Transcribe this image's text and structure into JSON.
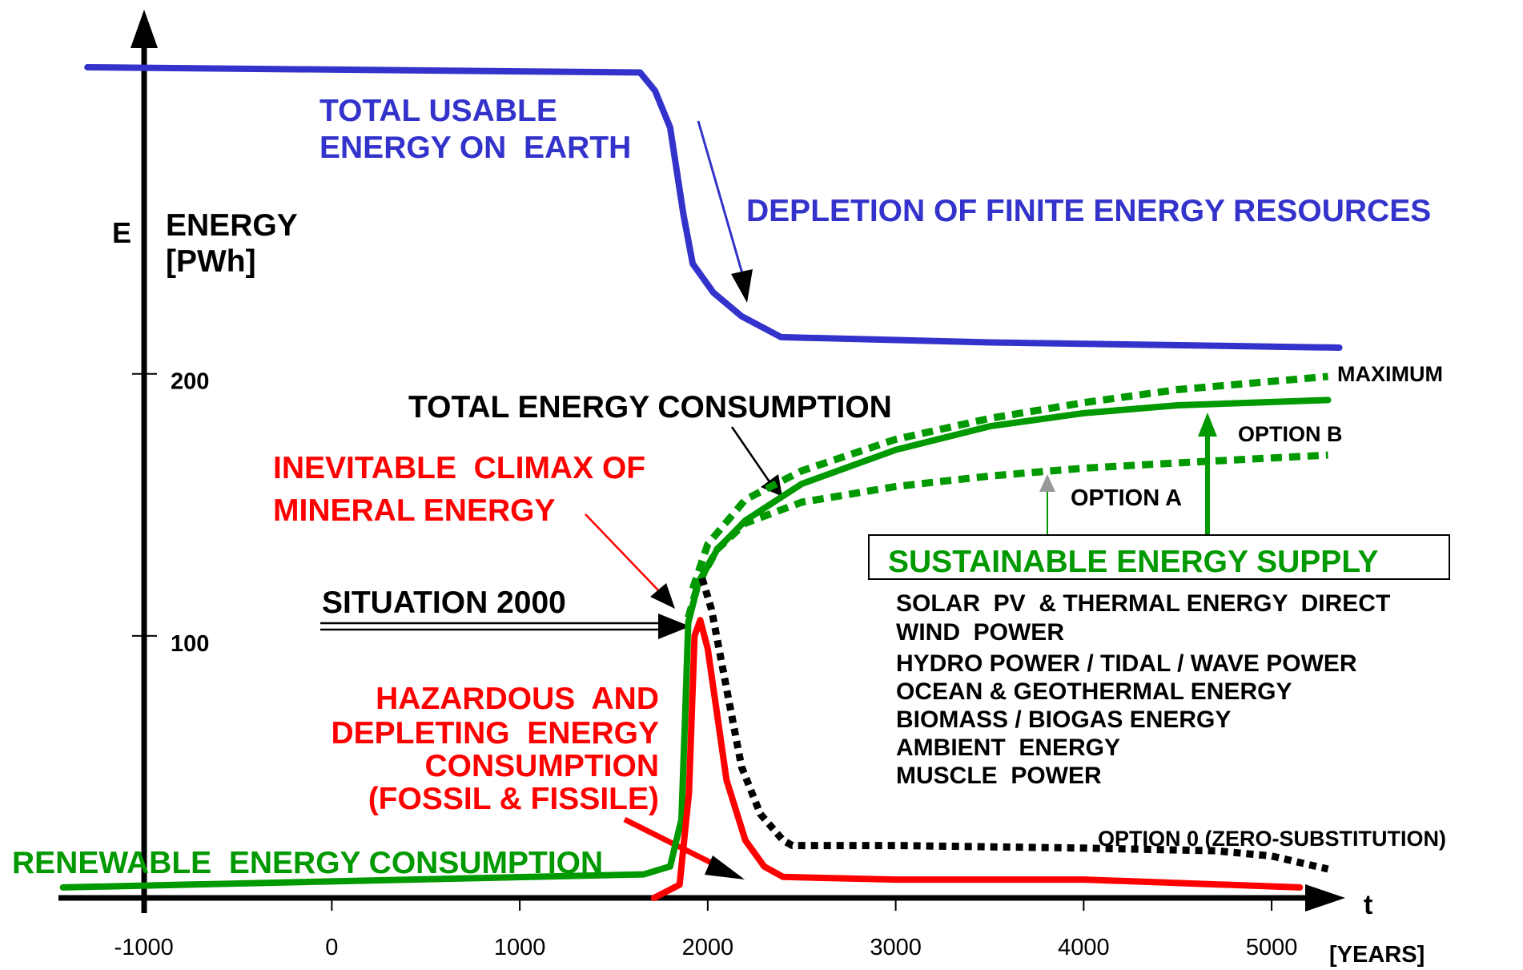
{
  "chart_data": {
    "type": "line",
    "xlim": [
      -1450,
      5400
    ],
    "ylim": [
      0,
      339
    ],
    "xticks": [
      -1000,
      0,
      1000,
      2000,
      3000,
      4000,
      5000
    ],
    "yticks": [
      100,
      200
    ],
    "x_axis_label": "t",
    "x_unit_label": "[YEARS]",
    "y_axis_symbol": "E",
    "y_axis_label": [
      "ENERGY",
      "[PWh]"
    ],
    "series": [
      {
        "color": "#3333cc",
        "style": "solid",
        "x": [
          -1300,
          1640,
          1720,
          1800,
          1870,
          1920,
          2030,
          2180,
          2390,
          3500,
          5360
        ],
        "values": [
          317,
          315,
          308,
          294,
          261,
          242,
          231,
          222,
          214,
          212,
          210
        ]
      },
      {
        "color": "#009900",
        "style": "solid",
        "x": [
          -1430,
          1660,
          1800,
          1860,
          1880,
          1896
        ],
        "values": [
          4,
          9,
          12,
          30,
          70,
          105
        ]
      },
      {
        "color": "#009900",
        "style": "solid",
        "x": [
          1896,
          1950,
          2050,
          2200,
          2500,
          3000,
          3500,
          4000,
          4500,
          5300
        ],
        "values": [
          105,
          120,
          133,
          144,
          158,
          171,
          180,
          185,
          188,
          190
        ]
      },
      {
        "color": "#009900",
        "style": "dotted",
        "x": [
          1920,
          2000,
          2200,
          2500,
          3000,
          3500,
          4000,
          4500,
          5300
        ],
        "values": [
          118,
          135,
          152,
          163,
          175,
          183,
          189,
          194,
          199
        ]
      },
      {
        "color": "#009900",
        "style": "dotted",
        "x": [
          1896,
          1950,
          2050,
          2200,
          2500,
          3000,
          3500,
          4000,
          4500,
          5300
        ],
        "values": [
          107,
          120,
          133,
          143,
          151,
          157,
          161,
          164,
          166,
          169
        ]
      },
      {
        "color": "#000000",
        "style": "dotted",
        "x": [
          1970,
          2020,
          2060,
          2100,
          2180,
          2280,
          2400,
          2450,
          3000,
          4000,
          4700,
          5000,
          5300
        ],
        "values": [
          122,
          110,
          95,
          80,
          50,
          32,
          22,
          20,
          20,
          19,
          18,
          16,
          11
        ]
      },
      {
        "color": "#ff0000",
        "style": "solid",
        "x": [
          1714,
          1850,
          1900,
          1930,
          1960,
          2000,
          2050,
          2100,
          2200,
          2300,
          2400,
          3000,
          4000,
          5150
        ],
        "values": [
          0,
          5,
          40,
          100,
          106,
          95,
          70,
          45,
          22,
          12,
          8,
          7,
          7,
          4
        ]
      }
    ],
    "annotations": [
      {
        "text": "TOTAL USABLE",
        "color": "#3333cc"
      },
      {
        "text": "ENERGY ON  EARTH",
        "color": "#3333cc"
      },
      {
        "text": "DEPLETION OF FINITE ENERGY RESOURCES",
        "color": "#3333cc"
      },
      {
        "text": "TOTAL ENERGY CONSUMPTION",
        "color": "#000000"
      },
      {
        "text": "INEVITABLE  CLIMAX OF",
        "color": "#ff0000"
      },
      {
        "text": "MINERAL ENERGY",
        "color": "#ff0000"
      },
      {
        "text": "SITUATION 2000",
        "color": "#000000"
      },
      {
        "text": "HAZARDOUS  AND",
        "color": "#ff0000"
      },
      {
        "text": "DEPLETING  ENERGY",
        "color": "#ff0000"
      },
      {
        "text": "CONSUMPTION",
        "color": "#ff0000"
      },
      {
        "text": "(FOSSIL & FISSILE)",
        "color": "#ff0000"
      },
      {
        "text": "RENEWABLE  ENERGY CONSUMPTION",
        "color": "#009900"
      },
      {
        "text": "MAXIMUM",
        "color": "#000000"
      },
      {
        "text": "OPTION B",
        "color": "#000000"
      },
      {
        "text": "OPTION A",
        "color": "#000000"
      },
      {
        "text": "SUSTAINABLE ENERGY SUPPLY",
        "color": "#009900"
      },
      {
        "text": "SOLAR  PV  & THERMAL ENERGY  DIRECT",
        "color": "#000000"
      },
      {
        "text": "WIND  POWER",
        "color": "#000000"
      },
      {
        "text": "HYDRO POWER / TIDAL / WAVE POWER",
        "color": "#000000"
      },
      {
        "text": "OCEAN & GEOTHERMAL ENERGY",
        "color": "#000000"
      },
      {
        "text": "BIOMASS / BIOGAS ENERGY",
        "color": "#000000"
      },
      {
        "text": "AMBIENT  ENERGY",
        "color": "#000000"
      },
      {
        "text": "MUSCLE  POWER",
        "color": "#000000"
      },
      {
        "text": "OPTION 0 (ZERO-SUBSTITUTION)",
        "color": "#000000"
      }
    ]
  }
}
